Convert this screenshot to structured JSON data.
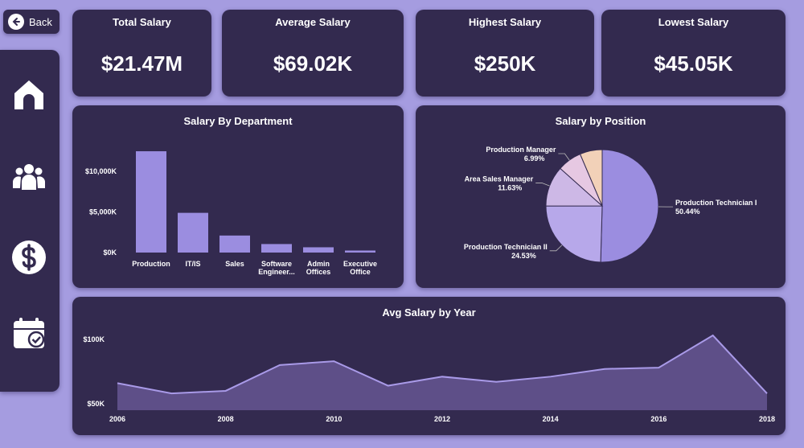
{
  "back": {
    "label": "Back"
  },
  "nav": {
    "items": [
      {
        "name": "home",
        "icon": "home-icon"
      },
      {
        "name": "employees",
        "icon": "users-icon"
      },
      {
        "name": "salary",
        "icon": "dollar-icon"
      },
      {
        "name": "calendar",
        "icon": "calendar-check-icon"
      }
    ]
  },
  "kpis": {
    "total": {
      "title": "Total Salary",
      "value": "$21.47M"
    },
    "average": {
      "title": "Average Salary",
      "value": "$69.02K"
    },
    "highest": {
      "title": "Highest Salary",
      "value": "$250K"
    },
    "lowest": {
      "title": "Lowest Salary",
      "value": "$45.05K"
    }
  },
  "colors": {
    "background": "#a59ce0",
    "card": "#332a4f",
    "bar": "#9b8de0",
    "area_fill": "#5e4f88",
    "area_line": "#a99ae8",
    "pie": [
      "#9b8de0",
      "#b7a8ea",
      "#cdb8e6",
      "#e6c8e2",
      "#f2d1b8"
    ]
  },
  "chart_data": [
    {
      "type": "bar",
      "title": "Salary By Department",
      "categories": [
        [
          "Production"
        ],
        [
          "IT/IS"
        ],
        [
          "Sales"
        ],
        [
          "Software",
          "Engineer..."
        ],
        [
          "Admin",
          "Offices"
        ],
        [
          "Executive",
          "Office"
        ]
      ],
      "values": [
        12500,
        4900,
        2100,
        1050,
        650,
        250
      ],
      "unit": "K",
      "y_ticks": [
        {
          "value": 0,
          "label": "$0K"
        },
        {
          "value": 5000,
          "label": "$5,000K"
        },
        {
          "value": 10000,
          "label": "$10,000K"
        }
      ],
      "ylim": [
        0,
        13000
      ]
    },
    {
      "type": "pie",
      "title": "Salary by Position",
      "slices": [
        {
          "label": "Production Technician I",
          "percent_label": "50.44%",
          "value": 50.44
        },
        {
          "label": "Production Technician II",
          "percent_label": "24.53%",
          "value": 24.53
        },
        {
          "label": "Area Sales Manager",
          "percent_label": "11.63%",
          "value": 11.63
        },
        {
          "label": "Production Manager",
          "percent_label": "6.99%",
          "value": 6.99
        },
        {
          "label": "",
          "percent_label": "",
          "value": 6.41
        }
      ]
    },
    {
      "type": "area",
      "title": "Avg Salary by Year",
      "x": [
        2006,
        2007,
        2008,
        2009,
        2010,
        2011,
        2012,
        2013,
        2014,
        2015,
        2016,
        2017,
        2018
      ],
      "values": [
        66,
        58,
        60,
        80,
        83,
        64,
        71,
        67,
        71,
        77,
        78,
        103,
        58
      ],
      "x_ticks": [
        2006,
        2008,
        2010,
        2012,
        2014,
        2016,
        2018
      ],
      "y_ticks": [
        {
          "value": 50,
          "label": "$50K"
        },
        {
          "value": 100,
          "label": "$100K"
        }
      ],
      "ylim": [
        45,
        108
      ]
    }
  ]
}
